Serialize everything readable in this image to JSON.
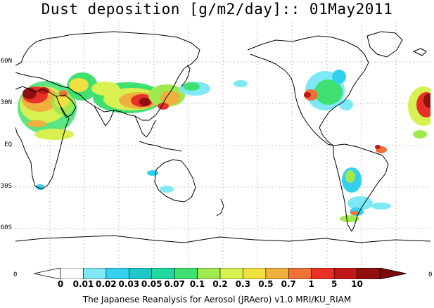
{
  "title": "Dust deposition [g/m2/day]:: 01May2011",
  "lat_labels": [
    "60N",
    "30N",
    "EQ",
    "30S",
    "60S"
  ],
  "edge_zero_left": "0",
  "edge_zero_right": "0",
  "colorbar": {
    "labels": [
      "0",
      "0.01",
      "0.02",
      "0.03",
      "0.05",
      "0.07",
      "0.1",
      "0.2",
      "0.3",
      "0.5",
      "0.7",
      "1",
      "5",
      "10"
    ],
    "colors": [
      "#ffffff",
      "#7fe8f5",
      "#33d0f0",
      "#20c8c8",
      "#20d8a0",
      "#40e070",
      "#a0ea50",
      "#d8f050",
      "#f0e040",
      "#f0b040",
      "#f07038",
      "#e83028",
      "#c01818",
      "#901010"
    ]
  },
  "footer": "The Japanese Reanalysis for Aerosol (JRAero) v1.0 MRI/KU_RIAM",
  "map": {
    "projection": "cylindrical, Pacific-centred (longitude 0E at both edges)",
    "gridlines": "dotted, every 30 degrees",
    "dust_regions": [
      "Sahara / North Africa",
      "Arabian Peninsula",
      "Central Asia / Taklamakan / Gobi",
      "North-west Pacific",
      "Central North America",
      "Northern South America",
      "Patagonia",
      "Southern Africa",
      "Australia"
    ]
  }
}
